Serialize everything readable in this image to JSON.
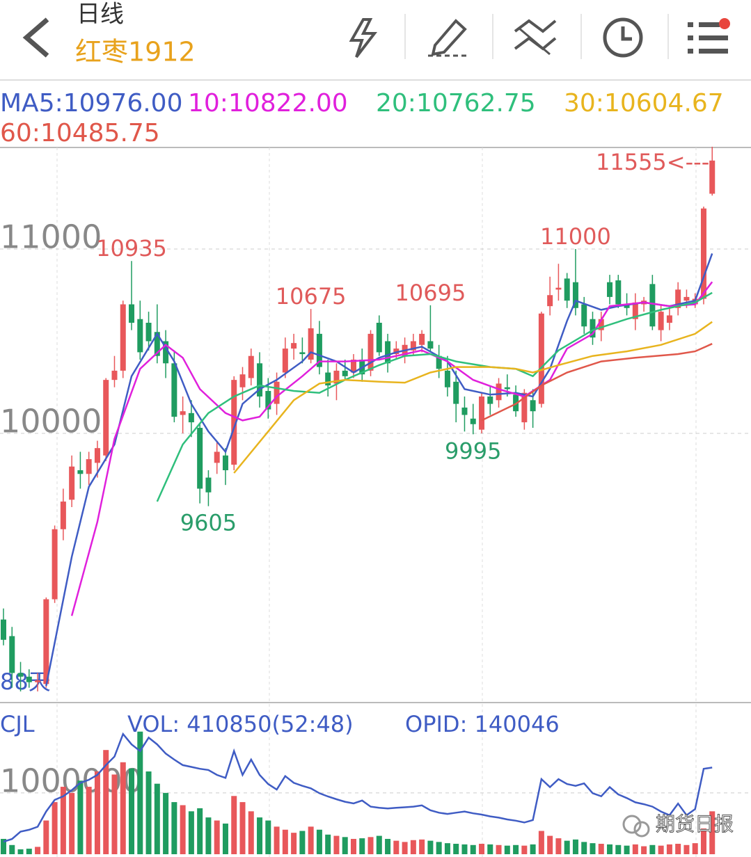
{
  "header": {
    "title": "日线",
    "subtitle": "红枣1912"
  },
  "chart_data": {
    "type": "candlestick",
    "up_color": "#e8575a",
    "down_color": "#1f9c60",
    "ylim": [
      8547,
      11551
    ],
    "yticks": [
      10000,
      11000
    ],
    "grid": true,
    "open": [
      8990,
      8900,
      8700,
      8680,
      8650,
      8640,
      9100,
      9480,
      9640,
      9800,
      9780,
      9840,
      9880,
      10290,
      10340,
      10700,
      10620,
      10600,
      10550,
      10500,
      10380,
      10100,
      10110,
      10030,
      9760,
      9840,
      9880,
      9830,
      10250,
      10300,
      10380,
      10230,
      10160,
      10330,
      10460,
      10440,
      10400,
      10540,
      10330,
      10270,
      10340,
      10330,
      10400,
      10340,
      10600,
      10500,
      10430,
      10420,
      10450,
      10480,
      10500,
      10420,
      10340,
      10280,
      10140,
      10080,
      10020,
      10200,
      10180,
      10250,
      10210,
      10060,
      10180,
      10160,
      10690,
      10780,
      10840,
      10820,
      10700,
      10620,
      10560,
      10820,
      10830,
      10700,
      10620,
      10700,
      10810,
      10560,
      10600,
      10680,
      10720,
      10700,
      10730,
      11300
    ],
    "high": [
      9050,
      8950,
      8760,
      8720,
      8700,
      9110,
      9500,
      9700,
      9880,
      9900,
      9900,
      9960,
      10300,
      10420,
      10720,
      10935,
      10720,
      10660,
      10700,
      10560,
      10450,
      10200,
      10180,
      10050,
      9800,
      9960,
      9920,
      10310,
      10360,
      10460,
      10440,
      10300,
      10330,
      10520,
      10540,
      10520,
      10675,
      10610,
      10400,
      10380,
      10400,
      10430,
      10460,
      10560,
      10640,
      10540,
      10500,
      10520,
      10540,
      10560,
      10695,
      10480,
      10420,
      10340,
      10200,
      10160,
      10220,
      10260,
      10300,
      10320,
      10260,
      10240,
      10240,
      10660,
      10850,
      10920,
      10870,
      11000,
      10740,
      10660,
      10660,
      10860,
      10860,
      10760,
      10760,
      10740,
      10860,
      10700,
      10680,
      10820,
      10780,
      10760,
      11230,
      11555
    ],
    "low": [
      8850,
      8620,
      8600,
      8620,
      8600,
      8620,
      9080,
      9420,
      9600,
      9700,
      9720,
      9760,
      9850,
      10250,
      10300,
      10560,
      10400,
      10450,
      10380,
      10300,
      10060,
      10000,
      9980,
      9620,
      9605,
      9780,
      9720,
      9800,
      10180,
      10260,
      10140,
      10080,
      10100,
      10300,
      10400,
      10380,
      10380,
      10320,
      10200,
      10180,
      10290,
      10300,
      10280,
      10310,
      10420,
      10330,
      10400,
      10380,
      10420,
      10440,
      10440,
      10300,
      10200,
      10060,
      10010,
      9995,
      10000,
      10100,
      10140,
      10200,
      10090,
      10020,
      10030,
      10140,
      10640,
      10720,
      10680,
      10640,
      10540,
      10480,
      10500,
      10700,
      10680,
      10640,
      10560,
      10660,
      10560,
      10500,
      10560,
      10640,
      10680,
      10680,
      10700,
      11290
    ],
    "close": [
      8880,
      8700,
      8680,
      8650,
      8660,
      9100,
      9480,
      9630,
      9820,
      9780,
      9860,
      9920,
      10290,
      10340,
      10700,
      10600,
      10440,
      10500,
      10420,
      10380,
      10090,
      10120,
      10060,
      9700,
      9680,
      9900,
      9800,
      10290,
      10320,
      10420,
      10200,
      10130,
      10280,
      10460,
      10490,
      10430,
      10570,
      10360,
      10260,
      10340,
      10310,
      10400,
      10320,
      10540,
      10440,
      10380,
      10460,
      10480,
      10500,
      10540,
      10460,
      10350,
      10250,
      10160,
      10100,
      10050,
      10200,
      10160,
      10270,
      10240,
      10120,
      10220,
      10120,
      10650,
      10750,
      10790,
      10720,
      10680,
      10580,
      10520,
      10620,
      10740,
      10700,
      10680,
      10710,
      10720,
      10580,
      10660,
      10640,
      10780,
      10740,
      10730,
      11220,
      11480
    ],
    "series": [
      {
        "name": "MA5:10976.00",
        "color": "#3f5cc4",
        "x": [
          5,
          8,
          10,
          13,
          15,
          18,
          20,
          22,
          24,
          26,
          28,
          30,
          32,
          35,
          36,
          39,
          41,
          44,
          46,
          49,
          52,
          54,
          57,
          60,
          62,
          64,
          66,
          67,
          70,
          72,
          75,
          78,
          81,
          83
        ],
        "values": [
          8630,
          9330,
          9710,
          9940,
          10310,
          10540,
          10390,
          10160,
          10010,
          9900,
          10160,
          10240,
          10290,
          10390,
          10440,
          10390,
          10330,
          10410,
          10440,
          10470,
          10390,
          10240,
          10210,
          10220,
          10200,
          10350,
          10610,
          10720,
          10670,
          10690,
          10710,
          10690,
          10720,
          10976
        ]
      },
      {
        "name": "10:10822.00",
        "color": "#e020dc",
        "x": [
          8,
          11,
          13,
          16,
          19,
          21,
          23,
          26,
          28,
          30,
          32,
          35,
          37,
          40,
          44,
          47,
          49,
          52,
          55,
          58,
          61,
          64,
          66,
          69,
          71,
          75,
          78,
          81,
          83
        ],
        "values": [
          9010,
          9520,
          9970,
          10350,
          10480,
          10410,
          10240,
          10110,
          10070,
          10090,
          10200,
          10310,
          10390,
          10390,
          10400,
          10430,
          10450,
          10390,
          10290,
          10240,
          10200,
          10290,
          10460,
          10540,
          10690,
          10710,
          10690,
          10700,
          10822
        ]
      },
      {
        "name": "20:10762.75",
        "color": "#2fbf7c",
        "x": [
          18,
          21,
          24,
          27,
          30,
          34,
          37,
          40,
          44,
          47,
          50,
          53,
          57,
          60,
          62,
          65,
          69,
          73,
          77,
          81,
          83
        ],
        "values": [
          9630,
          9940,
          10110,
          10200,
          10260,
          10230,
          10220,
          10290,
          10370,
          10420,
          10430,
          10390,
          10360,
          10350,
          10310,
          10450,
          10560,
          10620,
          10670,
          10710,
          10763
        ]
      },
      {
        "name": "30:10604.67",
        "color": "#e8b41e",
        "x": [
          27,
          31,
          34,
          37,
          40,
          44,
          47,
          50,
          53,
          57,
          60,
          62,
          65,
          69,
          73,
          77,
          81,
          83
        ],
        "values": [
          9785,
          10010,
          10180,
          10270,
          10290,
          10280,
          10275,
          10330,
          10360,
          10360,
          10350,
          10330,
          10370,
          10420,
          10445,
          10480,
          10540,
          10605
        ]
      },
      {
        "name": "60:10485.75",
        "color": "#e0574a",
        "x": [
          56,
          60,
          63,
          66,
          70,
          74,
          79,
          81,
          83
        ],
        "values": [
          10070,
          10160,
          10260,
          10330,
          10390,
          10410,
          10430,
          10445,
          10486
        ]
      }
    ],
    "annotations": [
      {
        "x": 15,
        "value": 10935
      },
      {
        "x": 24,
        "value": 9605
      },
      {
        "x": 36,
        "value": 10675
      },
      {
        "x": 50,
        "value": 10695
      },
      {
        "x": 55,
        "value": 9995
      },
      {
        "x": 67,
        "value": 11000
      },
      {
        "x": 83,
        "value": 11555,
        "label": "11555<---"
      }
    ],
    "overlay_text": "88天",
    "volume": {
      "label": "CJL",
      "title": "VOL: 410850(52:48)",
      "ylim": [
        0,
        2190000
      ],
      "yticks": [
        1000000
      ],
      "values": [
        250000,
        150000,
        80000,
        90000,
        120000,
        550000,
        850000,
        1100000,
        1000000,
        1200000,
        1100000,
        1350000,
        1700000,
        1300000,
        1500000,
        1400000,
        2000000,
        1350000,
        1150000,
        1000000,
        850000,
        800000,
        700000,
        750000,
        600000,
        550000,
        500000,
        950000,
        850000,
        700000,
        600000,
        550000,
        450000,
        400000,
        350000,
        380000,
        450000,
        400000,
        320000,
        300000,
        280000,
        250000,
        260000,
        280000,
        300000,
        250000,
        220000,
        200000,
        230000,
        240000,
        220000,
        200000,
        180000,
        170000,
        160000,
        150000,
        170000,
        160000,
        150000,
        140000,
        150000,
        140000,
        160000,
        380000,
        300000,
        260000,
        220000,
        240000,
        200000,
        180000,
        170000,
        160000,
        150000,
        140000,
        160000,
        130000,
        150000,
        140000,
        160000,
        170000,
        150000,
        180000,
        420000,
        700000
      ]
    },
    "opid": {
      "title": "OPID: 140046",
      "color": "#3f5cc4",
      "y2lim": [
        0,
        220000
      ],
      "values": [
        20500,
        25000,
        37000,
        40000,
        45000,
        70000,
        89000,
        95000,
        105000,
        117000,
        122000,
        130000,
        146000,
        160000,
        197000,
        180000,
        169000,
        191000,
        180000,
        165000,
        155000,
        146000,
        143000,
        140000,
        138000,
        130000,
        125000,
        169000,
        130000,
        155000,
        130000,
        115000,
        106000,
        128000,
        117000,
        112000,
        108000,
        100000,
        94600,
        90000,
        86000,
        83200,
        88000,
        78000,
        76000,
        75000,
        76000,
        77000,
        78000,
        80000,
        72000,
        68000,
        66000,
        68000,
        70000,
        67000,
        65000,
        62000,
        60000,
        57000,
        55000,
        52000,
        56000,
        123000,
        110000,
        123000,
        115000,
        112000,
        116000,
        100000,
        95000,
        110000,
        98000,
        92000,
        85000,
        82000,
        78000,
        70000,
        64000,
        83000,
        64000,
        74000,
        140000,
        142000
      ]
    },
    "watermark": "期货日报"
  }
}
